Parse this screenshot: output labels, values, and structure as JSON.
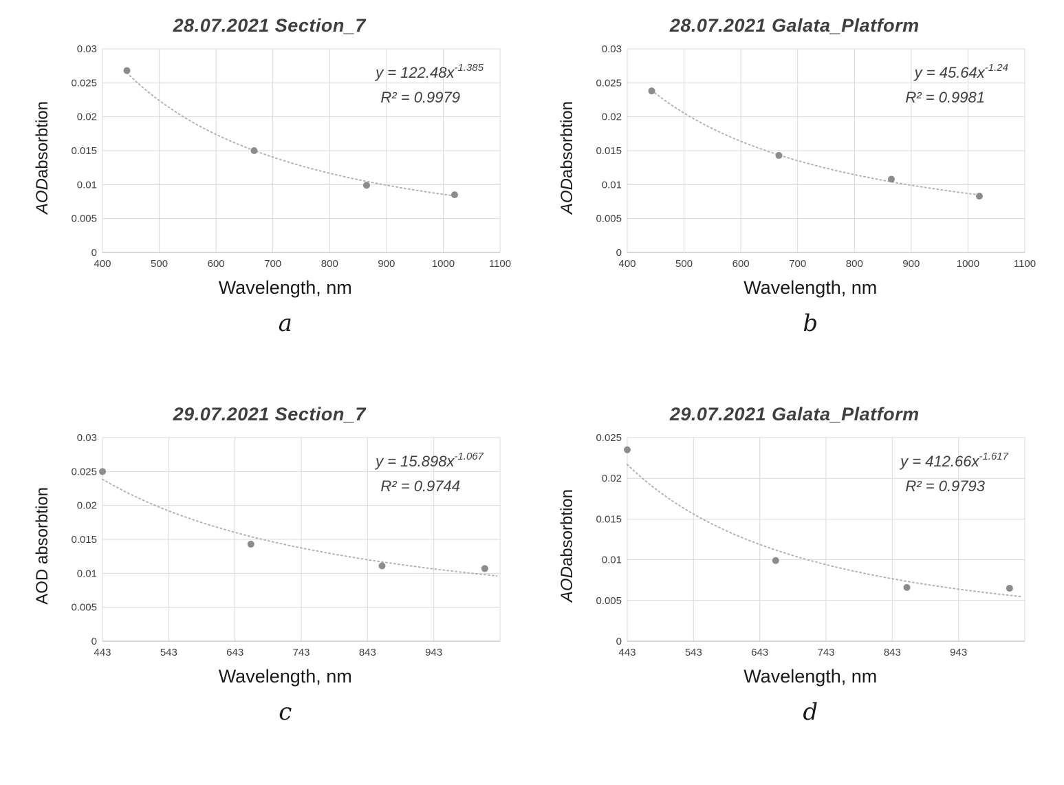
{
  "colors": {
    "grid": "#d9d9d9",
    "axis": "#bfbfbf",
    "marker": "#8c8c8c",
    "trend": "#b3b3b3",
    "text": "#404040"
  },
  "chart_data": [
    {
      "type": "scatter",
      "caption": "a",
      "title": "28.07.2021 Section_7",
      "eq_base": "y = 122.48x",
      "eq_exp": "-1.385",
      "r2": "R² = 0.9979",
      "xlabel": "Wavelength, nm",
      "ylabel_prefix": "AOD",
      "ylabel_rest": " absorbtion",
      "xlim": [
        400,
        1100
      ],
      "xticks": [
        400,
        500,
        600,
        700,
        800,
        900,
        1000,
        1100
      ],
      "ylim": [
        0,
        0.03
      ],
      "yticks": [
        0,
        0.005,
        0.01,
        0.015,
        0.02,
        0.025,
        0.03
      ],
      "points": [
        [
          443,
          0.0268
        ],
        [
          667,
          0.015
        ],
        [
          865,
          0.0099
        ],
        [
          1020,
          0.0085
        ]
      ],
      "trend": {
        "coef": 122.48,
        "exp": -1.385
      },
      "trend_range": [
        443,
        1020
      ]
    },
    {
      "type": "scatter",
      "caption": "b",
      "title": "28.07.2021 Galata_Platform",
      "eq_base": "y = 45.64x",
      "eq_exp": "-1.24",
      "r2": "R² = 0.9981",
      "xlabel": "Wavelength, nm",
      "ylabel_prefix": "AOD",
      "ylabel_rest": " absorbtion",
      "xlim": [
        400,
        1100
      ],
      "xticks": [
        400,
        500,
        600,
        700,
        800,
        900,
        1000,
        1100
      ],
      "ylim": [
        0,
        0.03
      ],
      "yticks": [
        0,
        0.005,
        0.01,
        0.015,
        0.02,
        0.025,
        0.03
      ],
      "points": [
        [
          443,
          0.0238
        ],
        [
          667,
          0.0143
        ],
        [
          865,
          0.0108
        ],
        [
          1020,
          0.0083
        ]
      ],
      "trend": {
        "coef": 45.64,
        "exp": -1.24
      },
      "trend_range": [
        443,
        1020
      ]
    },
    {
      "type": "scatter",
      "caption": "c",
      "title": "29.07.2021 Section_7",
      "eq_base": "y = 15.898x",
      "eq_exp": "-1.067",
      "r2": "R² = 0.9744",
      "xlabel": "Wavelength, nm",
      "ylabel_prefix": "",
      "ylabel_rest": "AOD absorbtion",
      "xlim": [
        443,
        1043
      ],
      "xticks": [
        443,
        543,
        643,
        743,
        843,
        943
      ],
      "ylim": [
        0,
        0.03
      ],
      "yticks": [
        0,
        0.005,
        0.01,
        0.015,
        0.02,
        0.025,
        0.03
      ],
      "points": [
        [
          443,
          0.025
        ],
        [
          667,
          0.0143
        ],
        [
          865,
          0.0111
        ],
        [
          1020,
          0.0107
        ]
      ],
      "trend": {
        "coef": 15.898,
        "exp": -1.067
      },
      "trend_range": [
        443,
        1038
      ]
    },
    {
      "type": "scatter",
      "caption": "d",
      "title": "29.07.2021 Galata_Platform",
      "eq_base": "y = 412.66x",
      "eq_exp": "-1.617",
      "r2": "R² = 0.9793",
      "xlabel": "Wavelength, nm",
      "ylabel_prefix": "AOD",
      "ylabel_rest": " absorbtion",
      "xlim": [
        443,
        1043
      ],
      "xticks": [
        443,
        543,
        643,
        743,
        843,
        943
      ],
      "ylim": [
        0,
        0.025
      ],
      "yticks": [
        0,
        0.005,
        0.01,
        0.015,
        0.02,
        0.025
      ],
      "points": [
        [
          443,
          0.0235
        ],
        [
          667,
          0.0099
        ],
        [
          865,
          0.0066
        ],
        [
          1020,
          0.0065
        ]
      ],
      "trend": {
        "coef": 412.66,
        "exp": -1.617
      },
      "trend_range": [
        443,
        1038
      ]
    }
  ]
}
